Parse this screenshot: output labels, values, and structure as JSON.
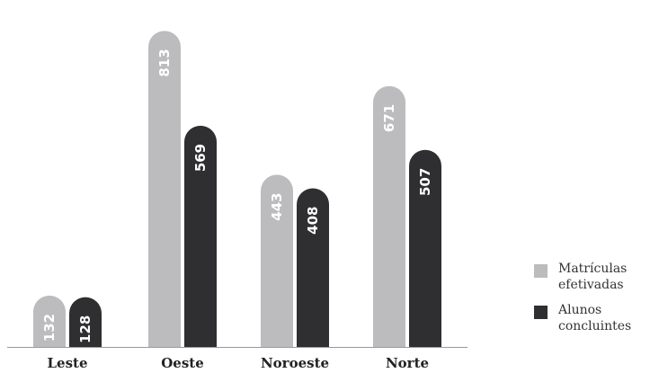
{
  "chart_data": {
    "type": "bar",
    "categories": [
      "Leste",
      "Oeste",
      "Noroeste",
      "Norte"
    ],
    "series": [
      {
        "name": "Matrículas efetivadas",
        "values": [
          132,
          813,
          443,
          671
        ],
        "color": "#bcbcbe"
      },
      {
        "name": "Alunos concluintes",
        "values": [
          128,
          569,
          408,
          507
        ],
        "color": "#2f2f31"
      }
    ],
    "ylim": [
      0,
      860
    ],
    "grid": false,
    "legend": "right"
  },
  "legend": {
    "items": [
      {
        "label_line1": "Matrículas",
        "label_line2": "efetivadas",
        "color": "#bcbcbe"
      },
      {
        "label_line1": "Alunos",
        "label_line2": "concluintes",
        "color": "#2f2f31"
      }
    ]
  }
}
